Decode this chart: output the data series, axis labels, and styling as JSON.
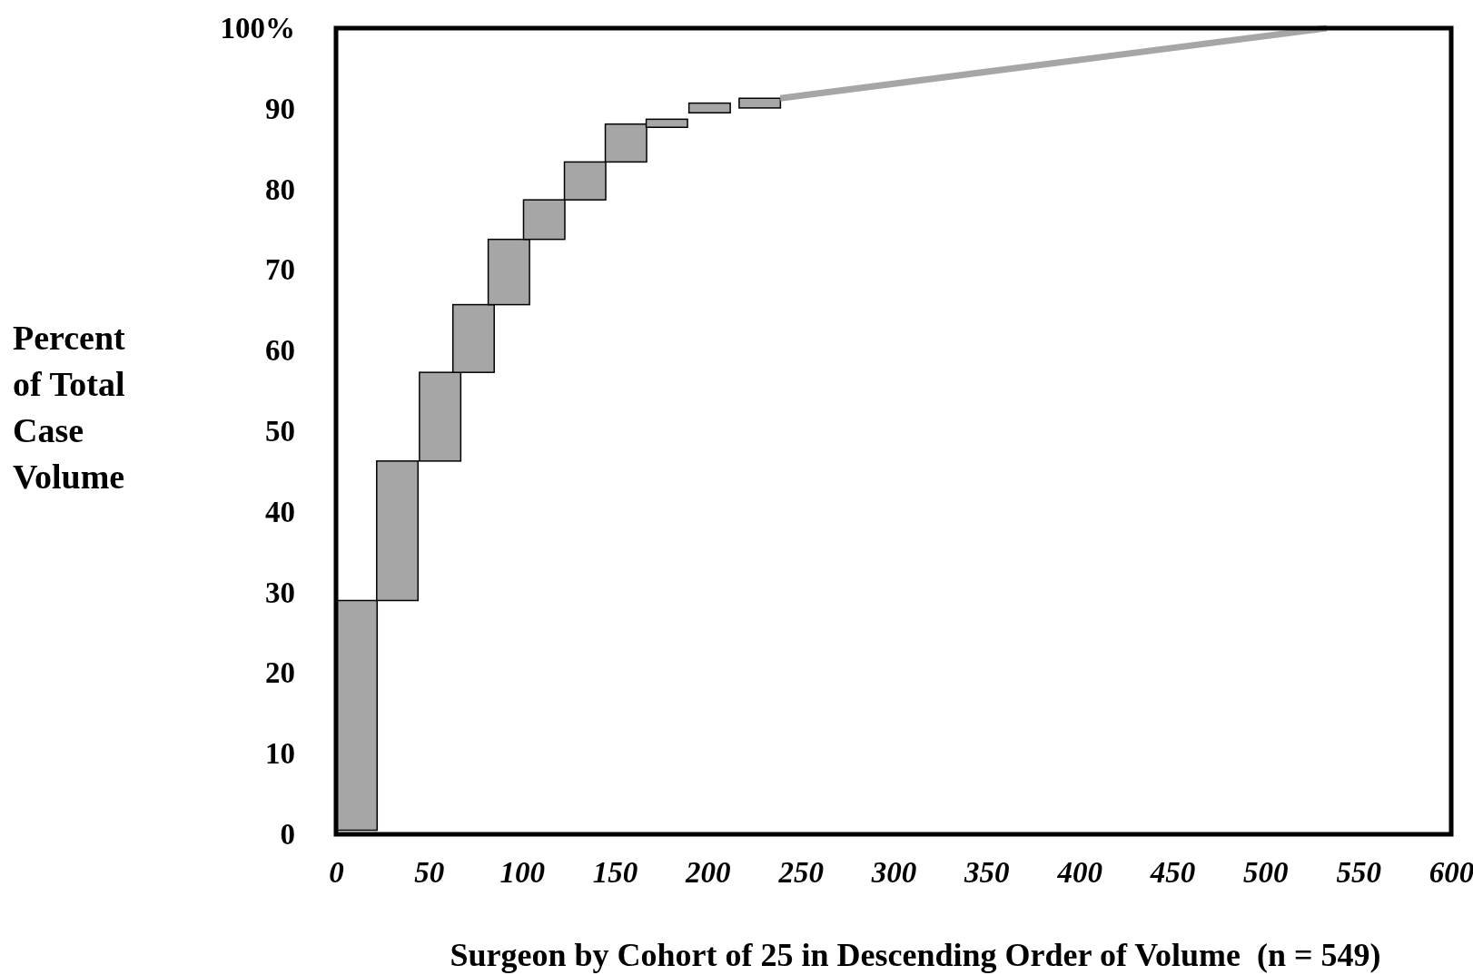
{
  "chart_data": {
    "type": "bar",
    "xlabel": "Surgeon by Cohort of 25 in Descending Order of Volume  (n = 549)",
    "ylabel": "Percent of Total Case Volume",
    "xlim": [
      0,
      600
    ],
    "xticks": [
      0,
      50,
      100,
      150,
      200,
      250,
      300,
      350,
      400,
      450,
      500,
      550,
      600
    ],
    "ylim": [
      0,
      100
    ],
    "yticks": [
      0,
      10,
      20,
      30,
      40,
      50,
      60,
      70,
      80,
      90,
      {
        "value": 100,
        "label": "100%"
      }
    ],
    "grid": false,
    "series": [
      {
        "color": "#a6a6a6",
        "x": [
          11,
          33,
          56,
          74,
          93,
          112,
          134,
          156,
          178,
          201,
          228
        ],
        "base": [
          0.5,
          29,
          46.3,
          57.3,
          65.7,
          73.8,
          78.7,
          83.4,
          87.7,
          89.5,
          90.1
        ],
        "values": [
          28.5,
          17.3,
          11,
          8.4,
          8.1,
          4.9,
          4.7,
          4.7,
          1,
          1.2,
          1.2
        ]
      },
      {
        "type": "line",
        "color": "#a6a6a6",
        "x": [
          239,
          533
        ],
        "values": [
          91.3,
          100
        ]
      }
    ]
  }
}
